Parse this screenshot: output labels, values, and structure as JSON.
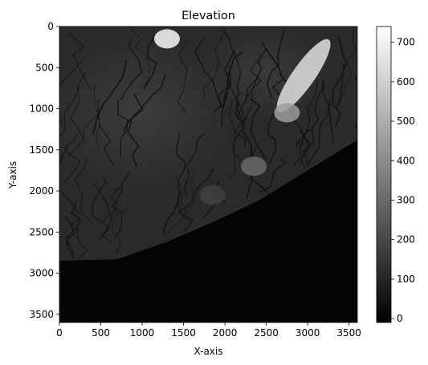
{
  "chart_data": {
    "type": "heatmap",
    "title": "Elevation",
    "xlabel": "X-axis",
    "ylabel": "Y-axis",
    "xlim": [
      0,
      3600
    ],
    "ylim": [
      3600,
      0
    ],
    "x_ticks": [
      0,
      500,
      1000,
      1500,
      2000,
      2500,
      3000,
      3500
    ],
    "y_ticks": [
      0,
      500,
      1000,
      1500,
      2000,
      2500,
      3000,
      3500
    ],
    "x_tick_labels": [
      "0",
      "500",
      "1000",
      "1500",
      "2000",
      "2500",
      "3000",
      "3500"
    ],
    "y_tick_labels": [
      "0",
      "500",
      "1000",
      "1500",
      "2000",
      "2500",
      "3000",
      "3500"
    ],
    "colormap": "gray",
    "colorbar": {
      "vmin": -10,
      "vmax": 740,
      "ticks": [
        0,
        100,
        200,
        300,
        400,
        500,
        600,
        700
      ],
      "tick_labels": [
        "0",
        "100",
        "200",
        "300",
        "400",
        "500",
        "600",
        "700"
      ]
    },
    "dark_region_boundary": [
      {
        "x": 0,
        "y": 2850
      },
      {
        "x": 700,
        "y": 2830
      },
      {
        "x": 1300,
        "y": 2620
      },
      {
        "x": 1900,
        "y": 2360
      },
      {
        "x": 2400,
        "y": 2120
      },
      {
        "x": 3000,
        "y": 1750
      },
      {
        "x": 3600,
        "y": 1380
      }
    ],
    "bright_features": [
      {
        "x": 2950,
        "y": 600,
        "value": 650
      },
      {
        "x": 1300,
        "y": 150,
        "value": 720
      },
      {
        "x": 2750,
        "y": 1050,
        "value": 450
      },
      {
        "x": 2350,
        "y": 1700,
        "value": 300
      },
      {
        "x": 1850,
        "y": 2050,
        "value": 180
      }
    ],
    "grid": false
  }
}
